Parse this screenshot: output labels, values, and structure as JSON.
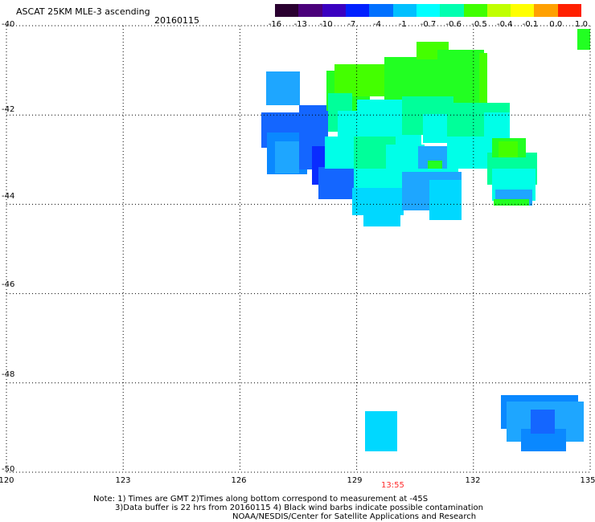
{
  "header": {
    "title": "ASCAT 25KM MLE-3 ascending",
    "date": "20160115"
  },
  "colorbar": {
    "labels": [
      "-16",
      "-13",
      "-10",
      "-7",
      "-4",
      "-1",
      "-0.7",
      "-0.6",
      "-0.5",
      "-0.4",
      "-0.1",
      "0.0",
      "1.0"
    ],
    "colors": [
      "#2a0030",
      "#4a007a",
      "#3a00c0",
      "#0020ff",
      "#0070ff",
      "#00c0ff",
      "#00ffff",
      "#00ffb0",
      "#40ff00",
      "#c0ff00",
      "#ffff00",
      "#ffa000",
      "#ff2000"
    ]
  },
  "axes": {
    "y_labels": [
      "-40",
      "-42",
      "-44",
      "-46",
      "-48",
      "-50"
    ],
    "x_labels": [
      "120",
      "123",
      "126",
      "129",
      "132",
      "135"
    ]
  },
  "map": {
    "lon_range": [
      120,
      135
    ],
    "lat_range": [
      -50,
      -40
    ],
    "swath_colors": {
      "blue_dark": "#0a2cff",
      "blue": "#1466ff",
      "blue_mid": "#0a88ff",
      "blue_light": "#1ea6ff",
      "cyan": "#00d8ff",
      "aqua": "#00ffe8",
      "sea_green": "#00ff9a",
      "green": "#22ff22",
      "green_lime": "#44ff00"
    }
  },
  "time_label": "13:55",
  "notes": {
    "line1": "Note: 1) Times are GMT 2)Times along bottom correspond to measurement at -45S",
    "line2": "3)Data buffer is 22 hrs from 20160115 4) Black wind barbs indicate possible contamination",
    "line3": "NOAA/NESDIS/Center for Satellite Applications and Research"
  }
}
